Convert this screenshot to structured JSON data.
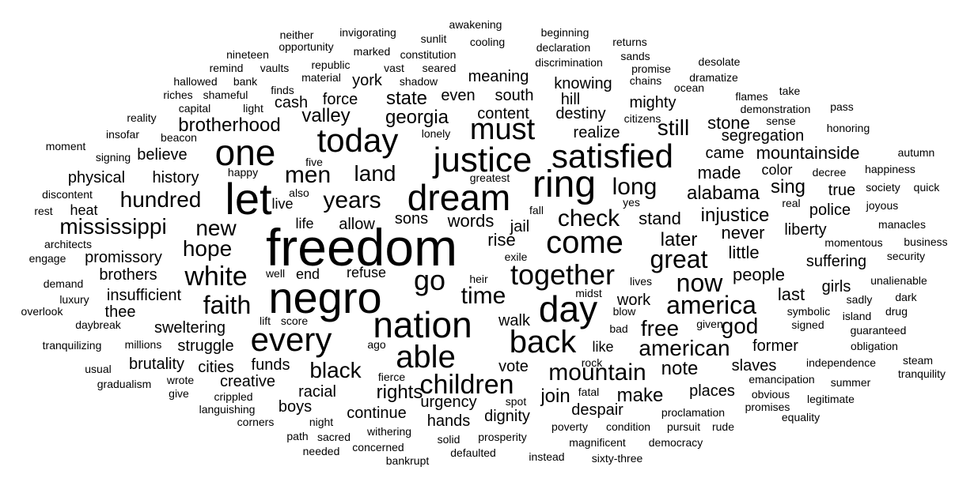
{
  "words": [
    "freedom",
    "negro",
    "dream",
    "nation",
    "justice",
    "satisfied",
    "one",
    "let",
    "ring",
    "today",
    "must",
    "every",
    "day",
    "back",
    "come",
    "able",
    "go",
    "together",
    "white",
    "faith",
    "now",
    "great",
    "america",
    "time",
    "children",
    "mountain",
    "check",
    "long",
    "mississippi",
    "men",
    "new",
    "hope",
    "years",
    "hundred",
    "black",
    "land",
    "still",
    "free",
    "god",
    "american",
    "brotherhood",
    "later",
    "injustice",
    "alabama",
    "made",
    "mountainside",
    "stone",
    "sing",
    "valley",
    "georgia",
    "state",
    "never",
    "last",
    "people",
    "segregation",
    "rights",
    "join",
    "make",
    "note",
    "places",
    "creative",
    "sweltering",
    "insufficient",
    "struggle",
    "thee",
    "promissory",
    "brothers",
    "physical",
    "believe",
    "history",
    "rise",
    "allow",
    "words",
    "sons",
    "jail",
    "stand",
    "cash",
    "force",
    "york",
    "meaning",
    "knowing",
    "mighty",
    "destiny",
    "hill",
    "realize",
    "even",
    "south",
    "content",
    "color",
    "true",
    "police",
    "liberty",
    "girls",
    "suffering",
    "little",
    "came",
    "work",
    "former",
    "slaves",
    "vote",
    "walk",
    "funds",
    "brutality",
    "cities",
    "racial",
    "boys",
    "continue",
    "urgency",
    "hands",
    "dignity",
    "despair",
    "refuse",
    "end",
    "live",
    "life",
    "heat",
    "architects",
    "engage",
    "demand",
    "luxury",
    "overlook",
    "daybreak",
    "tranquilizing",
    "usual",
    "gradualism",
    "wrote",
    "give",
    "crippled",
    "languishing",
    "corners",
    "night",
    "path",
    "sacred",
    "needed",
    "concerned",
    "bankrupt",
    "defaulted",
    "instead",
    "sixty-three",
    "democracy",
    "pursuit",
    "magnificent",
    "poverty",
    "condition",
    "prosperity",
    "solid",
    "withering",
    "proclamation",
    "rude",
    "promises",
    "equality",
    "summer",
    "legitimate",
    "obvious",
    "emancipation",
    "steam",
    "tranquility",
    "independence",
    "obligation",
    "guaranteed",
    "signed",
    "given",
    "island",
    "drug",
    "sadly",
    "dark",
    "symbolic",
    "unalienable",
    "security",
    "business",
    "manacles",
    "momentous",
    "joyous",
    "society",
    "quick",
    "happiness",
    "autumn",
    "decree",
    "honoring",
    "sense",
    "pass",
    "demonstration",
    "take",
    "flames",
    "dramatize",
    "desolate",
    "ocean",
    "promise",
    "returns",
    "sands",
    "chains",
    "citizens",
    "discrimination",
    "declaration",
    "beginning",
    "cooling",
    "awakening",
    "sunlit",
    "invigorating",
    "constitution",
    "marked",
    "opportunity",
    "neither",
    "nineteen",
    "vaults",
    "republic",
    "remind",
    "seared",
    "vast",
    "shadow",
    "bank",
    "hallowed",
    "material",
    "finds",
    "riches",
    "shameful",
    "capital",
    "light",
    "reality",
    "insofar",
    "beacon",
    "moment",
    "signing",
    "happy",
    "five",
    "discontent",
    "also",
    "rest",
    "greatest",
    "lonely",
    "fall",
    "exile",
    "heir",
    "midst",
    "yes",
    "real",
    "lives",
    "bad",
    "blow",
    "rock",
    "fierce",
    "spot",
    "ago",
    "lift",
    "score",
    "millions",
    "well",
    "fatal",
    "like"
  ]
}
